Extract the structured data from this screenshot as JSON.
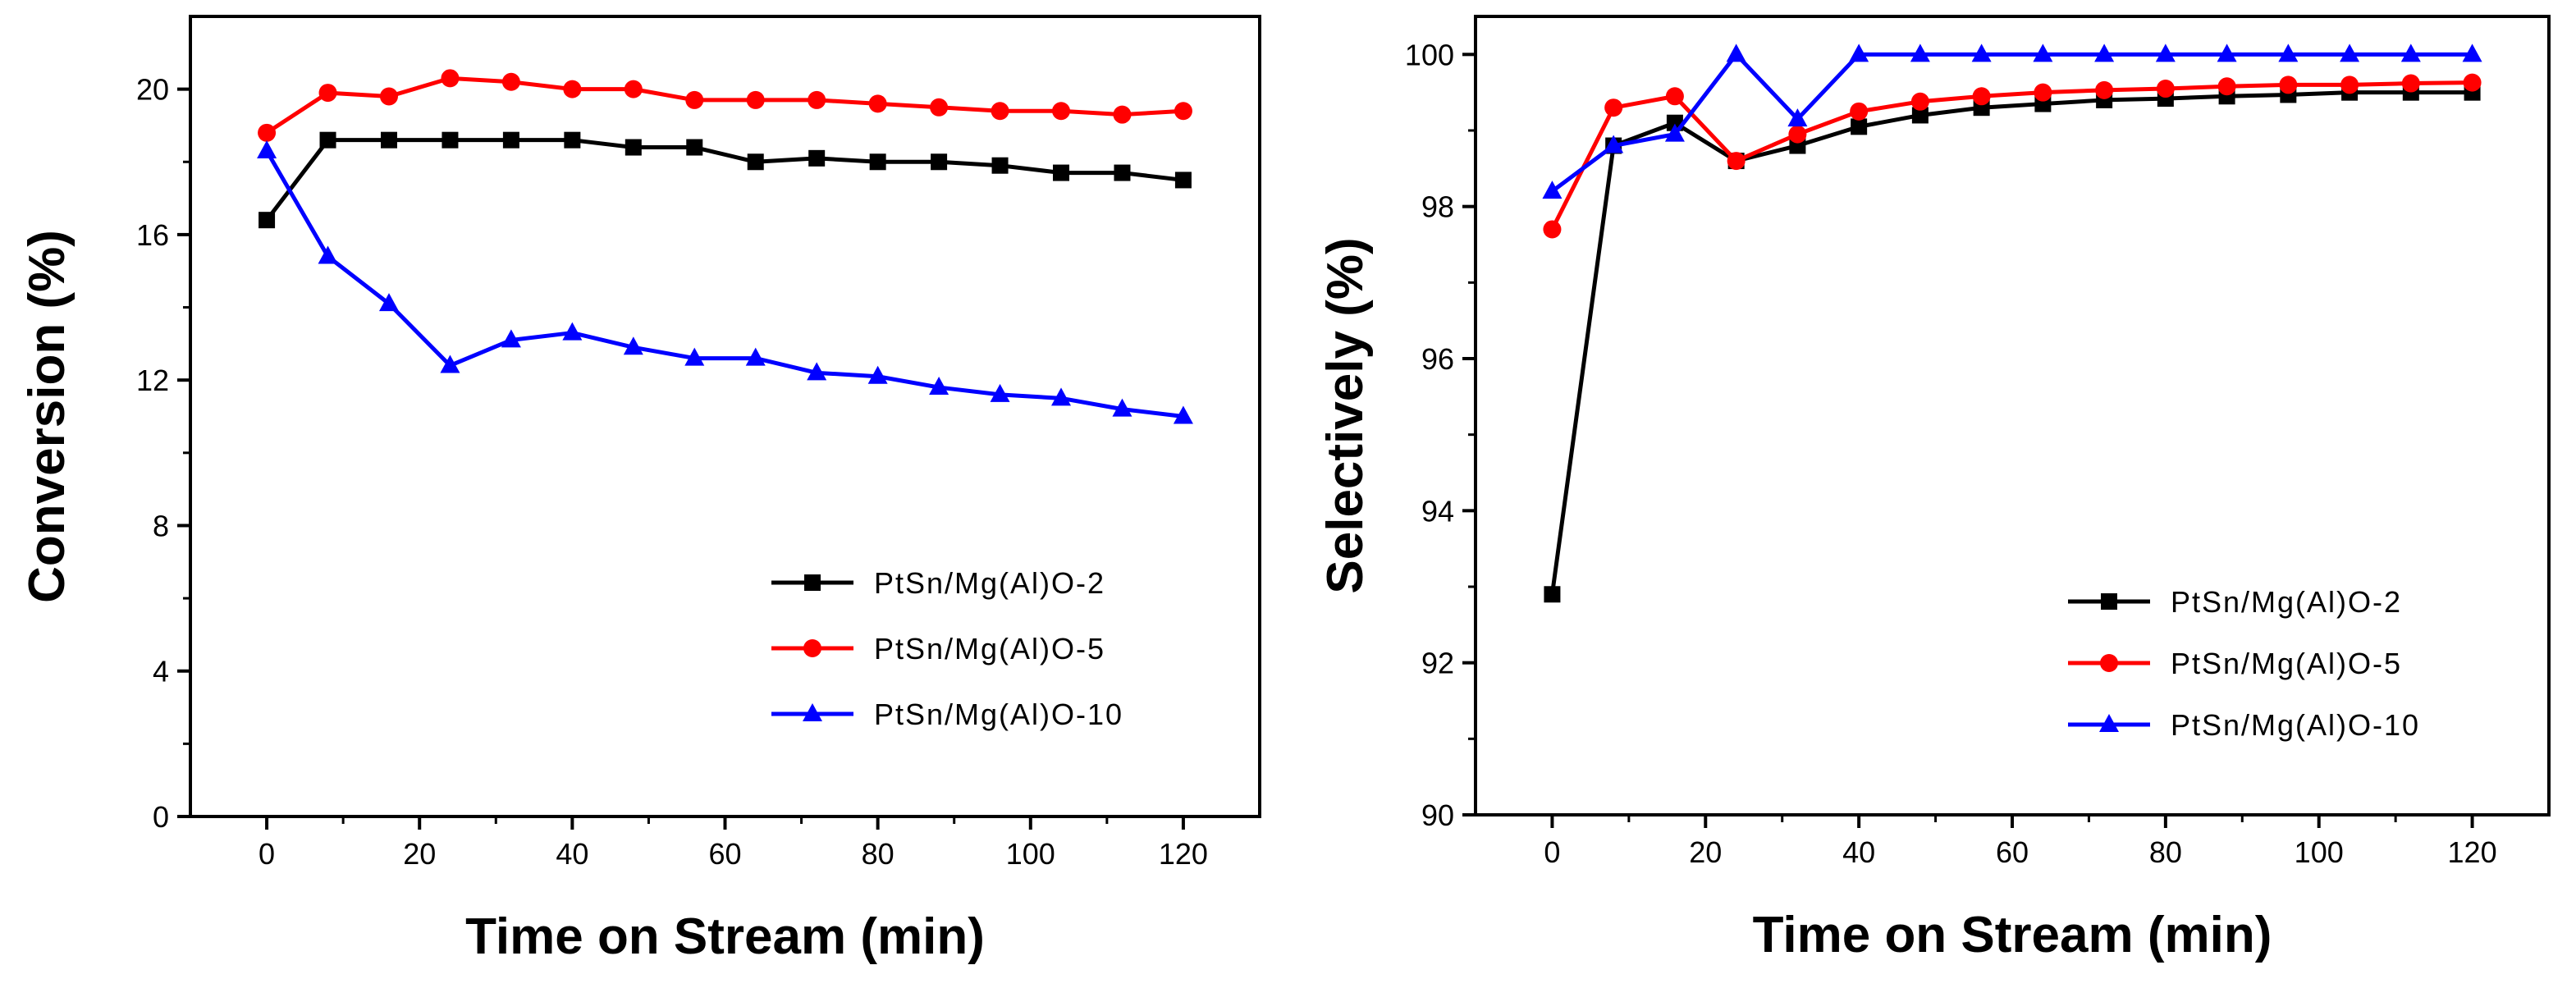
{
  "chart_data": [
    {
      "type": "line",
      "xlabel": "Time on Stream (min)",
      "ylabel": "Conversion (%)",
      "xlim": [
        -10,
        130
      ],
      "ylim": [
        0,
        22
      ],
      "xticks": [
        0,
        20,
        40,
        60,
        80,
        100,
        120
      ],
      "yticks": [
        0,
        4,
        8,
        12,
        16,
        20
      ],
      "legend_position": "center-right",
      "x": [
        0,
        8,
        16,
        24,
        32,
        40,
        48,
        56,
        64,
        72,
        80,
        88,
        96,
        104,
        112,
        120
      ],
      "series": [
        {
          "name": "PtSn/Mg(Al)O-2",
          "color": "#000000",
          "marker": "square",
          "values": [
            16.4,
            18.6,
            18.6,
            18.6,
            18.6,
            18.6,
            18.4,
            18.4,
            18.0,
            18.1,
            18.0,
            18.0,
            17.9,
            17.7,
            17.7,
            17.5
          ]
        },
        {
          "name": "PtSn/Mg(Al)O-5",
          "color": "#ff0000",
          "marker": "circle",
          "values": [
            18.8,
            19.9,
            19.8,
            20.3,
            20.2,
            20.0,
            20.0,
            19.7,
            19.7,
            19.7,
            19.6,
            19.5,
            19.4,
            19.4,
            19.3,
            19.4
          ]
        },
        {
          "name": "PtSn/Mg(Al)O-10",
          "color": "#0000ff",
          "marker": "triangle",
          "values": [
            18.3,
            15.4,
            14.1,
            12.4,
            13.1,
            13.3,
            12.9,
            12.6,
            12.6,
            12.2,
            12.1,
            11.8,
            11.6,
            11.5,
            11.2,
            11.0
          ]
        }
      ]
    },
    {
      "type": "line",
      "xlabel": "Time on Stream (min)",
      "ylabel": "Selectively (%)",
      "xlim": [
        -10,
        130
      ],
      "ylim": [
        90,
        100.5
      ],
      "xticks": [
        0,
        20,
        40,
        60,
        80,
        100,
        120
      ],
      "yticks": [
        90,
        92,
        94,
        96,
        98,
        100
      ],
      "legend_position": "center-right",
      "x": [
        0,
        8,
        16,
        24,
        32,
        40,
        48,
        56,
        64,
        72,
        80,
        88,
        96,
        104,
        112,
        120
      ],
      "series": [
        {
          "name": "PtSn/Mg(Al)O-2",
          "color": "#000000",
          "marker": "square",
          "values": [
            92.9,
            98.8,
            99.1,
            98.6,
            98.8,
            99.05,
            99.2,
            99.3,
            99.35,
            99.4,
            99.42,
            99.45,
            99.47,
            99.5,
            99.5,
            99.5
          ]
        },
        {
          "name": "PtSn/Mg(Al)O-5",
          "color": "#ff0000",
          "marker": "circle",
          "values": [
            97.7,
            99.3,
            99.45,
            98.6,
            98.95,
            99.25,
            99.38,
            99.45,
            99.5,
            99.53,
            99.55,
            99.58,
            99.6,
            99.6,
            99.62,
            99.63
          ]
        },
        {
          "name": "PtSn/Mg(Al)O-10",
          "color": "#0000ff",
          "marker": "triangle",
          "values": [
            98.2,
            98.8,
            98.95,
            100.0,
            99.15,
            100.0,
            100.0,
            100.0,
            100.0,
            100.0,
            100.0,
            100.0,
            100.0,
            100.0,
            100.0,
            100.0
          ]
        }
      ]
    }
  ]
}
